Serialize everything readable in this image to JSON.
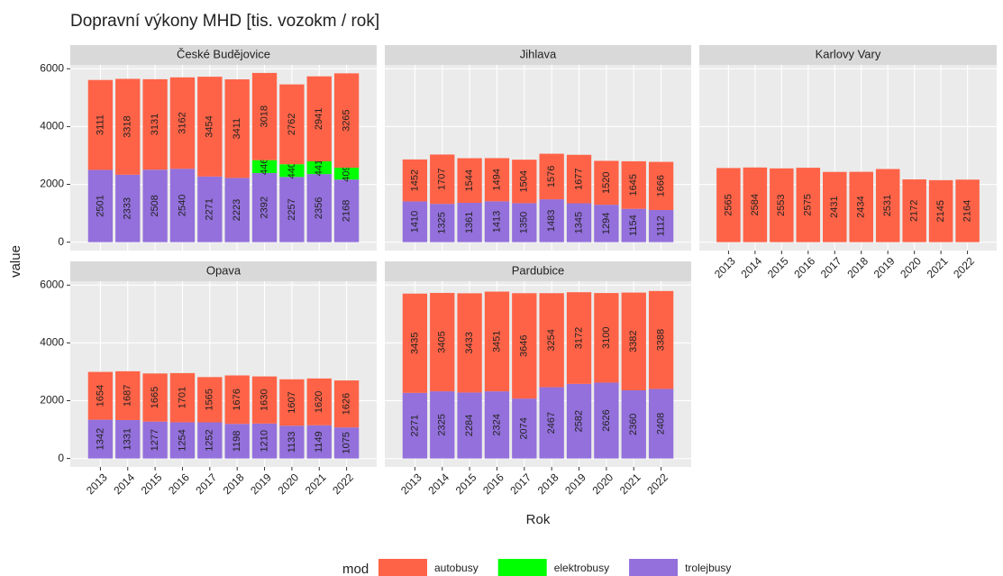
{
  "title": "Dopravní výkony MHD [tis. vozokm / rok]",
  "x_label": "Rok",
  "y_label": "value",
  "legend_title": "mod",
  "chart_data": [
    {
      "type": "bar",
      "stacked": true,
      "title": "České Budějovice",
      "categories": [
        "2013",
        "2014",
        "2015",
        "2016",
        "2017",
        "2018",
        "2019",
        "2020",
        "2021",
        "2022"
      ],
      "series": [
        {
          "name": "autobusy",
          "color": "#ff6347",
          "values": [
            3111,
            3318,
            3131,
            3162,
            3454,
            3411,
            3018,
            2762,
            2941,
            3265
          ]
        },
        {
          "name": "elektrobusy",
          "color": "#00ff00",
          "values": [
            null,
            null,
            null,
            null,
            null,
            null,
            446,
            440,
            441,
            409
          ]
        },
        {
          "name": "trolejbusy",
          "color": "#9370db",
          "values": [
            2501,
            2333,
            2508,
            2540,
            2271,
            2223,
            2392,
            2257,
            2356,
            2168
          ]
        }
      ],
      "ylim": [
        -292,
        6134
      ],
      "yticks": [
        0,
        2000,
        4000,
        6000
      ],
      "grid": true
    },
    {
      "type": "bar",
      "stacked": true,
      "title": "Jihlava",
      "categories": [
        "2013",
        "2014",
        "2015",
        "2016",
        "2017",
        "2018",
        "2019",
        "2020",
        "2021",
        "2022"
      ],
      "series": [
        {
          "name": "autobusy",
          "color": "#ff6347",
          "values": [
            1452,
            1707,
            1544,
            1494,
            1504,
            1576,
            1677,
            1520,
            1645,
            1666
          ]
        },
        {
          "name": "trolejbusy",
          "color": "#9370db",
          "values": [
            1410,
            1325,
            1361,
            1413,
            1350,
            1483,
            1345,
            1294,
            1154,
            1112
          ]
        }
      ],
      "ylim": [
        -292,
        6134
      ],
      "yticks": [
        0,
        2000,
        4000,
        6000
      ],
      "grid": true
    },
    {
      "type": "bar",
      "stacked": true,
      "title": "Karlovy Vary",
      "categories": [
        "2013",
        "2014",
        "2015",
        "2016",
        "2017",
        "2018",
        "2019",
        "2020",
        "2021",
        "2022"
      ],
      "series": [
        {
          "name": "autobusy",
          "color": "#ff6347",
          "values": [
            2565,
            2584,
            2553,
            2575,
            2431,
            2434,
            2531,
            2172,
            2145,
            2164
          ]
        }
      ],
      "ylim": [
        -292,
        6134
      ],
      "yticks": [
        0,
        2000,
        4000,
        6000
      ],
      "grid": true
    },
    {
      "type": "bar",
      "stacked": true,
      "title": "Opava",
      "categories": [
        "2013",
        "2014",
        "2015",
        "2016",
        "2017",
        "2018",
        "2019",
        "2020",
        "2021",
        "2022"
      ],
      "series": [
        {
          "name": "autobusy",
          "color": "#ff6347",
          "values": [
            1654,
            1687,
            1665,
            1701,
            1565,
            1676,
            1630,
            1607,
            1620,
            1626
          ]
        },
        {
          "name": "trolejbusy",
          "color": "#9370db",
          "values": [
            1342,
            1331,
            1277,
            1254,
            1252,
            1198,
            1210,
            1133,
            1149,
            1075
          ]
        }
      ],
      "ylim": [
        -292,
        6134
      ],
      "yticks": [
        0,
        2000,
        4000,
        6000
      ],
      "grid": true
    },
    {
      "type": "bar",
      "stacked": true,
      "title": "Pardubice",
      "categories": [
        "2013",
        "2014",
        "2015",
        "2016",
        "2017",
        "2018",
        "2019",
        "2020",
        "2021",
        "2022"
      ],
      "series": [
        {
          "name": "autobusy",
          "color": "#ff6347",
          "values": [
            3435,
            3405,
            3433,
            3451,
            3646,
            3254,
            3172,
            3100,
            3382,
            3388
          ]
        },
        {
          "name": "trolejbusy",
          "color": "#9370db",
          "values": [
            2271,
            2325,
            2284,
            2324,
            2074,
            2467,
            2582,
            2626,
            2360,
            2408
          ]
        }
      ],
      "ylim": [
        -292,
        6134
      ],
      "yticks": [
        0,
        2000,
        4000,
        6000
      ],
      "grid": true
    }
  ]
}
